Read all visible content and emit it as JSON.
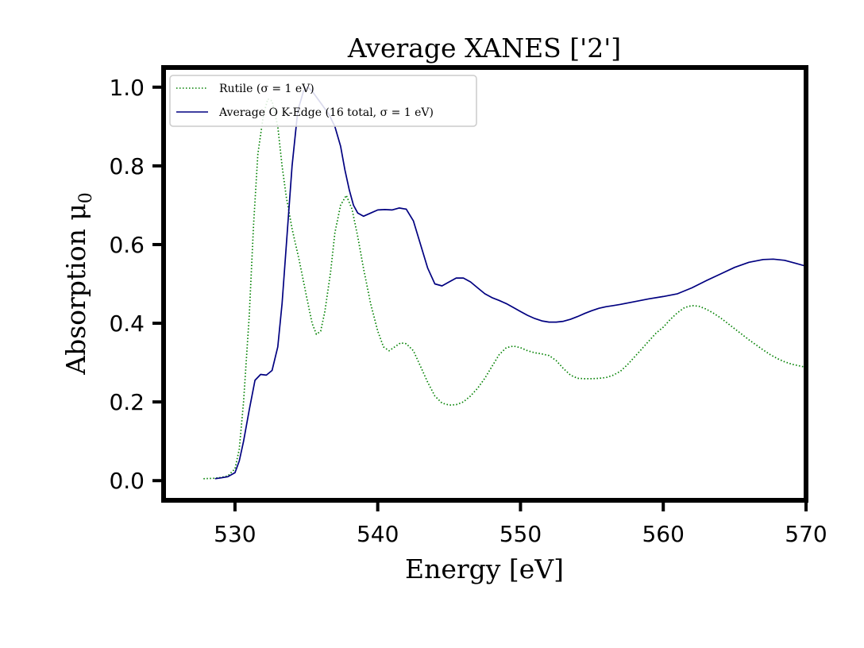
{
  "chart_data": {
    "type": "line",
    "title": "Average XANES ['2']",
    "xlabel": "Energy [eV]",
    "ylabel": "Absorption μ",
    "ylabel_sub": "0",
    "xlim": [
      525,
      570
    ],
    "ylim": [
      -0.05,
      1.05
    ],
    "xticks": [
      530,
      540,
      550,
      560,
      570
    ],
    "yticks": [
      0.0,
      0.2,
      0.4,
      0.6,
      0.8,
      1.0
    ],
    "xtick_labels": [
      "530",
      "540",
      "550",
      "560",
      "570"
    ],
    "ytick_labels": [
      "0.0",
      "0.2",
      "0.4",
      "0.6",
      "0.8",
      "1.0"
    ],
    "grid": false,
    "legend_position": "top-left",
    "series": [
      {
        "name": "Rutile (σ = 1 eV)",
        "color": "#008000",
        "style": "dotted",
        "x": [
          527.8,
          528.5,
          529.0,
          529.5,
          530.0,
          530.3,
          530.6,
          531.0,
          531.3,
          531.6,
          532.0,
          532.3,
          532.6,
          533.0,
          533.3,
          533.6,
          534.0,
          534.5,
          535.0,
          535.4,
          535.7,
          536.0,
          536.3,
          536.7,
          537.0,
          537.4,
          537.8,
          538.2,
          538.6,
          539.0,
          539.5,
          540.0,
          540.4,
          540.8,
          541.2,
          541.6,
          542.0,
          542.5,
          543.0,
          543.5,
          544.0,
          544.5,
          545.0,
          545.5,
          546.0,
          546.5,
          547.0,
          547.5,
          548.0,
          548.5,
          549.0,
          549.5,
          550.0,
          550.5,
          551.0,
          551.5,
          552.0,
          552.5,
          553.0,
          553.5,
          554.0,
          554.5,
          555.0,
          555.5,
          556.0,
          556.5,
          557.0,
          557.5,
          558.0,
          558.5,
          559.0,
          559.5,
          560.0,
          560.5,
          561.0,
          561.5,
          562.0,
          562.5,
          563.0,
          563.5,
          564.0,
          564.5,
          565.0,
          565.5,
          566.0,
          566.5,
          567.0,
          567.5,
          568.0,
          568.5,
          569.0,
          569.5,
          570.0
        ],
        "y": [
          0.005,
          0.006,
          0.008,
          0.012,
          0.03,
          0.08,
          0.2,
          0.42,
          0.65,
          0.83,
          0.93,
          0.97,
          0.965,
          0.9,
          0.8,
          0.72,
          0.64,
          0.56,
          0.47,
          0.4,
          0.372,
          0.38,
          0.43,
          0.53,
          0.63,
          0.7,
          0.725,
          0.69,
          0.62,
          0.54,
          0.45,
          0.38,
          0.34,
          0.33,
          0.34,
          0.35,
          0.348,
          0.33,
          0.29,
          0.25,
          0.215,
          0.197,
          0.192,
          0.193,
          0.2,
          0.215,
          0.235,
          0.26,
          0.29,
          0.32,
          0.338,
          0.342,
          0.338,
          0.33,
          0.325,
          0.322,
          0.318,
          0.305,
          0.285,
          0.268,
          0.26,
          0.259,
          0.259,
          0.26,
          0.262,
          0.268,
          0.278,
          0.295,
          0.315,
          0.335,
          0.355,
          0.375,
          0.39,
          0.41,
          0.427,
          0.44,
          0.445,
          0.443,
          0.436,
          0.426,
          0.414,
          0.4,
          0.386,
          0.372,
          0.358,
          0.345,
          0.332,
          0.32,
          0.31,
          0.302,
          0.296,
          0.292,
          0.288
        ]
      },
      {
        "name": "Average O K-Edge (16 total, σ = 1 eV)",
        "color": "#000080",
        "style": "solid",
        "x": [
          528.6,
          529.0,
          529.5,
          530.0,
          530.3,
          530.6,
          531.0,
          531.4,
          531.8,
          532.2,
          532.6,
          533.0,
          533.3,
          533.6,
          534.0,
          534.4,
          534.8,
          535.1,
          535.4,
          535.8,
          536.2,
          536.6,
          537.0,
          537.4,
          537.7,
          538.0,
          538.3,
          538.6,
          539.0,
          539.5,
          540.0,
          540.5,
          541.0,
          541.5,
          542.0,
          542.5,
          543.0,
          543.5,
          544.0,
          544.5,
          545.0,
          545.5,
          546.0,
          546.5,
          547.0,
          547.5,
          548.0,
          548.5,
          549.0,
          549.5,
          550.0,
          550.5,
          551.0,
          551.5,
          552.0,
          552.5,
          553.0,
          553.5,
          554.0,
          554.5,
          555.0,
          555.5,
          556.0,
          556.5,
          557.0,
          558.0,
          559.0,
          560.0,
          561.0,
          562.0,
          563.0,
          564.0,
          565.0,
          566.0,
          567.0,
          567.7,
          568.5,
          569.3,
          570.0
        ],
        "y": [
          0.005,
          0.007,
          0.01,
          0.02,
          0.05,
          0.1,
          0.18,
          0.255,
          0.27,
          0.268,
          0.28,
          0.34,
          0.45,
          0.6,
          0.8,
          0.94,
          0.99,
          1.0,
          0.99,
          0.97,
          0.95,
          0.93,
          0.9,
          0.85,
          0.79,
          0.74,
          0.7,
          0.68,
          0.672,
          0.68,
          0.688,
          0.689,
          0.688,
          0.693,
          0.69,
          0.66,
          0.6,
          0.54,
          0.5,
          0.495,
          0.505,
          0.515,
          0.515,
          0.505,
          0.49,
          0.475,
          0.465,
          0.458,
          0.45,
          0.44,
          0.43,
          0.42,
          0.412,
          0.406,
          0.403,
          0.403,
          0.405,
          0.41,
          0.417,
          0.425,
          0.432,
          0.438,
          0.442,
          0.445,
          0.448,
          0.455,
          0.462,
          0.468,
          0.475,
          0.49,
          0.508,
          0.525,
          0.542,
          0.555,
          0.562,
          0.563,
          0.56,
          0.552,
          0.545
        ]
      }
    ]
  }
}
